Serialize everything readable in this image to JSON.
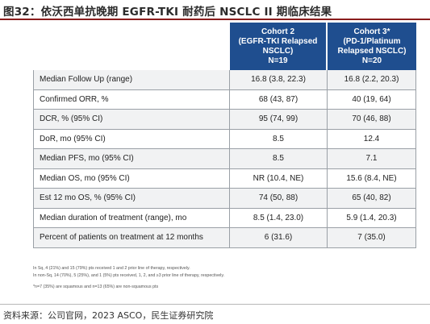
{
  "figure_title": "图32：依沃西单抗晚期 EGFR-TKI 耐药后 NSCLC II 期临床结果",
  "columns": [
    {
      "lines": [
        "Cohort 2",
        "(EGFR-TKI Relapsed",
        "NSCLC)",
        "N=19"
      ]
    },
    {
      "lines": [
        "Cohort 3*",
        "(PD-1/Platinum",
        "Relapsed NSCLC)",
        "N=20"
      ]
    }
  ],
  "rows": [
    {
      "label": "Median Follow Up (range)",
      "c2": "16.8 (3.8, 22.3)",
      "c3": "16.8 (2.2, 20.3)"
    },
    {
      "label": "Confirmed ORR, %",
      "c2": "68 (43, 87)",
      "c3": "40 (19, 64)"
    },
    {
      "label": "DCR, % (95% CI)",
      "c2": "95 (74, 99)",
      "c3": "70 (46, 88)"
    },
    {
      "label": "DoR, mo (95% CI)",
      "c2": "8.5",
      "c3": "12.4"
    },
    {
      "label": "Median PFS, mo (95% CI)",
      "c2": "8.5",
      "c3": "7.1"
    },
    {
      "label": "Median OS, mo (95% CI)",
      "c2": "NR (10.4, NE)",
      "c3": "15.6 (8.4, NE)"
    },
    {
      "label": "Est 12 mo OS, % (95% CI)",
      "c2": "74 (50, 88)",
      "c3": "65 (40, 82)"
    },
    {
      "label": "Median duration of treatment (range), mo",
      "c2": "8.5 (1.4, 23.0)",
      "c3": "5.9 (1.4, 20.3)"
    },
    {
      "label": "Percent of patients on treatment at 12 months",
      "c2": "6 (31.6)",
      "c3": "7 (35.0)"
    }
  ],
  "footnotes": [
    "In Sq, 4 (21%) and 15 (79%) pts received 1 and 2 prior line of therapy, respectively.",
    "In non-Sq, 14 (70%), 5 (25%), and 1 (5%) pts received, 1, 2, and ≥3 prior line of therapy, respectively.",
    "*n=7 (35%) are squamous and n=13 (65%) are non-squamous pts"
  ],
  "source": "资料来源：公司官网，2023 ASCO，民生证券研究院",
  "colors": {
    "header_bg": "#1f4e8f",
    "title_rule": "#8a1c1c",
    "alt_row": "#f1f2f3"
  }
}
